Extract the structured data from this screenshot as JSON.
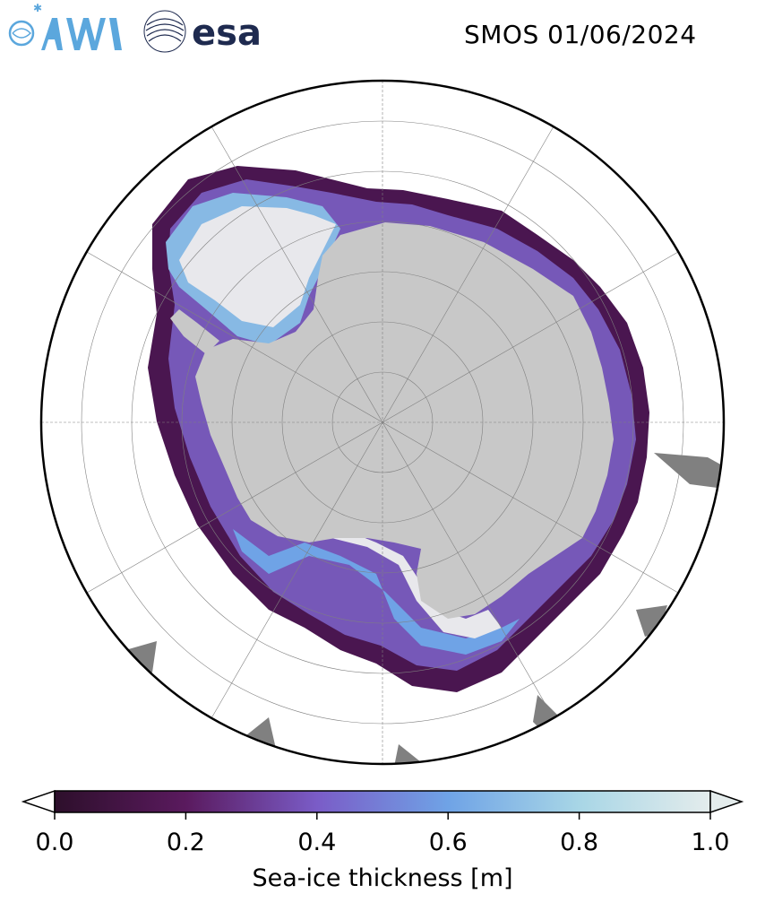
{
  "header": {
    "title": "SMOS 01/06/2024",
    "logos": [
      {
        "name": "awi-logo",
        "text": "AWI",
        "color": "#5ba7dd"
      },
      {
        "name": "esa-logo",
        "text": "esa",
        "color": "#1e2a4f"
      }
    ]
  },
  "map": {
    "projection": "south-polar-stereographic",
    "colors": {
      "land": "#c8c8c8",
      "ocean": "#ffffff",
      "masked": "#808080",
      "thick_ice": "#e8e8ec",
      "rim": "#000000",
      "grid": "#808080"
    }
  },
  "colorbar": {
    "label": "Sea-ice thickness [m]",
    "ticks": [
      "0.0",
      "0.2",
      "0.4",
      "0.6",
      "0.8",
      "1.0"
    ],
    "tick_values": [
      0.0,
      0.2,
      0.4,
      0.6,
      0.8,
      1.0
    ],
    "range": [
      0.0,
      1.0
    ],
    "extend": "both",
    "colormap_stops": [
      "#2d0f2b",
      "#5a1a5e",
      "#7a5cc7",
      "#6fa3e6",
      "#a8d6e6",
      "#e4ecec"
    ]
  }
}
